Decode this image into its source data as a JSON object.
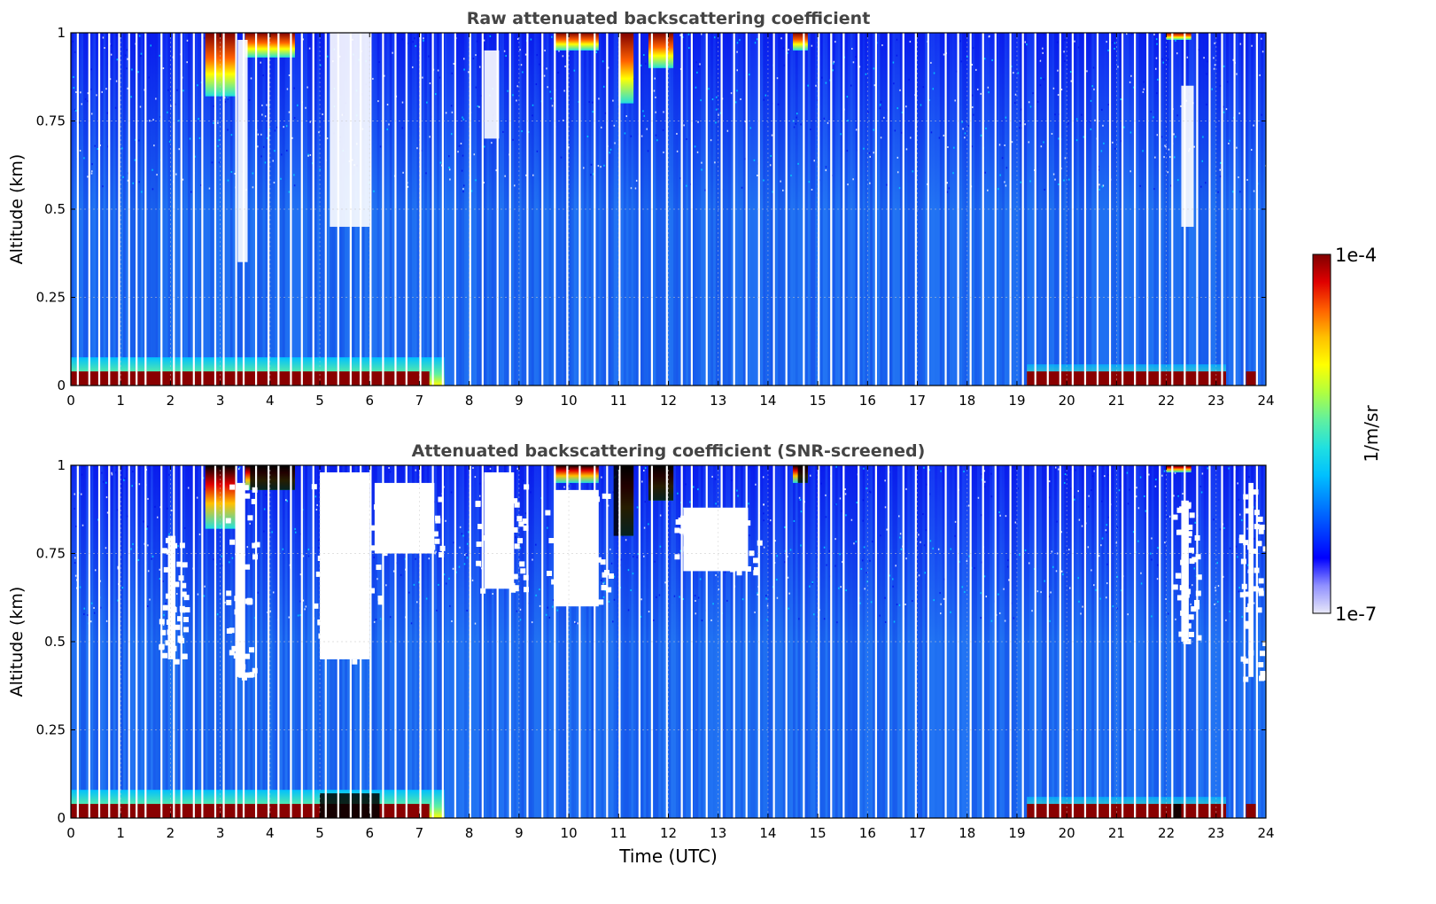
{
  "chart_data": [
    {
      "type": "heatmap",
      "title": "Raw attenuated backscattering coefficient",
      "xlabel": "",
      "ylabel": "Altitude (km)",
      "xlim": [
        0,
        24
      ],
      "ylim": [
        0,
        1
      ],
      "x_ticks": [
        "0",
        "1",
        "2",
        "3",
        "4",
        "5",
        "6",
        "7",
        "8",
        "9",
        "10",
        "11",
        "12",
        "13",
        "14",
        "15",
        "16",
        "17",
        "18",
        "19",
        "20",
        "21",
        "22",
        "23",
        "24"
      ],
      "y_ticks": [
        "0",
        "0.25",
        "0.5",
        "0.75",
        "1"
      ],
      "grid": true,
      "surface_layer": {
        "top_km": 0.04,
        "present_hours": [
          [
            0,
            7.2
          ],
          [
            19.2,
            23.2
          ],
          [
            23.6,
            23.8
          ]
        ],
        "level": "high"
      },
      "near_surface_aerosol": {
        "top_km": 0.08,
        "hours": [
          0,
          7.5
        ]
      },
      "cloud_top_segments": [
        {
          "start_h": 2.7,
          "end_h": 3.3,
          "base_km": 0.82,
          "level": "high"
        },
        {
          "start_h": 3.5,
          "end_h": 4.5,
          "base_km": 0.93,
          "level": "high"
        },
        {
          "start_h": 9.7,
          "end_h": 10.6,
          "base_km": 0.95,
          "level": "high"
        },
        {
          "start_h": 11.0,
          "end_h": 11.3,
          "base_km": 0.8,
          "level": "high"
        },
        {
          "start_h": 11.6,
          "end_h": 12.1,
          "base_km": 0.9,
          "level": "high"
        },
        {
          "start_h": 14.5,
          "end_h": 14.8,
          "base_km": 0.95,
          "level": "high"
        },
        {
          "start_h": 22.0,
          "end_h": 22.5,
          "base_km": 0.98,
          "level": "high"
        }
      ],
      "missing_profiles_h": [
        0.12,
        0.35,
        0.55,
        0.75,
        0.95,
        1.15,
        1.3,
        1.48,
        1.8,
        2.05,
        2.2,
        2.45,
        2.62,
        2.88,
        3.05,
        3.3,
        3.45,
        3.7,
        3.95,
        4.15,
        4.4,
        4.62,
        4.85,
        5.1,
        5.35,
        5.6,
        5.8,
        6.0,
        6.25,
        6.5,
        6.72,
        7.0,
        7.25,
        7.45,
        7.7,
        8.0,
        8.25,
        8.55,
        8.8,
        9.15,
        9.45,
        9.7,
        9.95,
        10.2,
        10.5,
        10.75,
        11.0,
        11.4,
        11.65,
        11.95,
        12.25,
        12.45,
        12.75,
        13.05,
        13.3,
        13.55,
        13.8,
        14.1,
        14.35,
        14.7,
        15.0,
        15.25,
        15.5,
        15.8,
        16.15,
        16.4,
        16.7,
        16.95,
        17.2,
        17.55,
        17.8,
        18.05,
        18.3,
        18.55,
        18.85,
        19.1,
        19.35,
        19.6,
        19.85,
        20.1,
        20.35,
        20.6,
        20.85,
        21.1,
        21.35,
        21.6,
        21.85,
        22.1,
        22.35,
        22.6,
        22.85,
        23.1,
        23.35,
        23.55,
        23.8
      ],
      "no_data_regions": [
        {
          "start_h": 3.35,
          "end_h": 3.55,
          "bottom_km": 0.35,
          "top_km": 0.98
        },
        {
          "start_h": 5.2,
          "end_h": 6.0,
          "bottom_km": 0.45,
          "top_km": 1.0
        },
        {
          "start_h": 8.3,
          "end_h": 8.6,
          "bottom_km": 0.7,
          "top_km": 0.95
        },
        {
          "start_h": 22.3,
          "end_h": 22.55,
          "bottom_km": 0.45,
          "top_km": 0.85
        }
      ]
    },
    {
      "type": "heatmap",
      "title": "Attenuated backscattering coefficient (SNR-screened)",
      "xlabel": "Time (UTC)",
      "ylabel": "Altitude (km)",
      "xlim": [
        0,
        24
      ],
      "ylim": [
        0,
        1
      ],
      "x_ticks": [
        "0",
        "1",
        "2",
        "3",
        "4",
        "5",
        "6",
        "7",
        "8",
        "9",
        "10",
        "11",
        "12",
        "13",
        "14",
        "15",
        "16",
        "17",
        "18",
        "19",
        "20",
        "21",
        "22",
        "23",
        "24"
      ],
      "y_ticks": [
        "0",
        "0.25",
        "0.5",
        "0.75",
        "1"
      ],
      "grid": true,
      "screened_regions": [
        {
          "start_h": 1.95,
          "end_h": 2.1,
          "bottom_km": 0.45,
          "top_km": 0.8
        },
        {
          "start_h": 3.3,
          "end_h": 3.5,
          "bottom_km": 0.4,
          "top_km": 0.95
        },
        {
          "start_h": 5.0,
          "end_h": 6.0,
          "bottom_km": 0.45,
          "top_km": 0.98
        },
        {
          "start_h": 6.1,
          "end_h": 7.3,
          "bottom_km": 0.75,
          "top_km": 0.95
        },
        {
          "start_h": 8.3,
          "end_h": 8.9,
          "bottom_km": 0.65,
          "top_km": 0.98
        },
        {
          "start_h": 9.7,
          "end_h": 10.6,
          "bottom_km": 0.6,
          "top_km": 0.93
        },
        {
          "start_h": 12.3,
          "end_h": 13.6,
          "bottom_km": 0.7,
          "top_km": 0.88
        },
        {
          "start_h": 22.3,
          "end_h": 22.45,
          "bottom_km": 0.5,
          "top_km": 0.9
        },
        {
          "start_h": 23.65,
          "end_h": 23.75,
          "bottom_km": 0.4,
          "top_km": 0.95
        }
      ],
      "over_range_segments": [
        {
          "start_h": 3.6,
          "end_h": 4.5,
          "base_km": 0.93
        },
        {
          "start_h": 10.9,
          "end_h": 11.3,
          "base_km": 0.8
        },
        {
          "start_h": 11.6,
          "end_h": 12.1,
          "base_km": 0.9
        },
        {
          "start_h": 14.6,
          "end_h": 14.8,
          "base_km": 0.95
        },
        {
          "start_h": 5.0,
          "end_h": 6.2,
          "base_km": 0.0,
          "top_km": 0.07
        },
        {
          "start_h": 22.1,
          "end_h": 22.3,
          "base_km": 0.0,
          "top_km": 0.04
        }
      ]
    }
  ],
  "colorbar": {
    "label": "1/m/sr",
    "max_label": "1e-4",
    "min_label": "1e-7",
    "range": [
      1e-07,
      0.0001
    ],
    "scale": "log",
    "colormap": [
      "#e8e8f8",
      "#9090ff",
      "#0000ff",
      "#0040ff",
      "#0080ff",
      "#00c0ff",
      "#20e0e0",
      "#60f0a0",
      "#b0ff40",
      "#ffff00",
      "#ffc000",
      "#ff6000",
      "#e00000",
      "#800000"
    ]
  },
  "colors": {
    "background_blue": "#1c6cf0",
    "deep_blue": "#0a1cf0",
    "surface_red": "#8a0000",
    "over_range": "#000000"
  }
}
